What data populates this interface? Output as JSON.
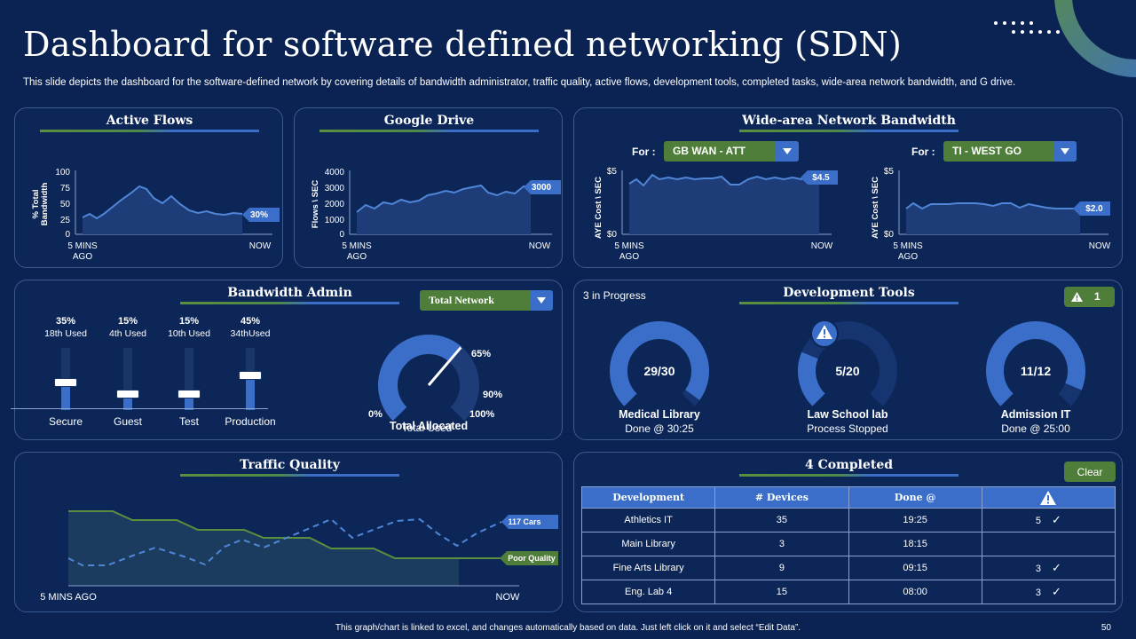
{
  "title": "Dashboard for software defined networking (SDN)",
  "subtitle": "This slide depicts the dashboard for the software-defined network by covering details of bandwidth administrator, traffic quality, active flows, development tools, completed tasks, wide-area network bandwidth, and G drive.",
  "active_flows": {
    "title": "Active Flows",
    "ylabel": "% Total\nBandwidth",
    "yticks": [
      "100",
      "75",
      "50",
      "25",
      "0"
    ],
    "x_start": "5 MINS\nAGO",
    "x_end": "NOW",
    "callout": "30%"
  },
  "google_drive": {
    "title": "Google Drive",
    "ylabel": "Flows \\ SEC",
    "yticks": [
      "4000",
      "3000",
      "2000",
      "1000",
      "0"
    ],
    "x_start": "5 MINS\nAGO",
    "x_end": "NOW",
    "callout": "3000"
  },
  "wan": {
    "title": "Wide-area Network Bandwidth",
    "left": {
      "for_label": "For :",
      "dropdown": "GB WAN - ATT",
      "ylabel": "AYE Cost \\ SEC",
      "ytop": "$5",
      "ybottom": "$0",
      "x_start": "5 MINS\nAGO",
      "x_end": "NOW",
      "callout": "$4.5"
    },
    "right": {
      "for_label": "For :",
      "dropdown": "TI - WEST GO",
      "ylabel": "AYE Cost \\ SEC",
      "ytop": "$5",
      "ybottom": "$0",
      "x_start": "5 MINS\nAGO",
      "x_end": "NOW",
      "callout": "$2.0"
    }
  },
  "bandwidth_admin": {
    "title": "Bandwidth Admin",
    "dropdown": "Total Network",
    "sliders": [
      {
        "pct": "35%",
        "used": "18th Used",
        "name": "Secure",
        "level": 0.35
      },
      {
        "pct": "15%",
        "used": "4th Used",
        "name": "Guest",
        "level": 0.15
      },
      {
        "pct": "15%",
        "used": "10th Used",
        "name": "Test",
        "level": 0.15
      },
      {
        "pct": "45%",
        "used": "34thUsed",
        "name": "Production",
        "level": 0.45
      }
    ],
    "gauge": {
      "label_0": "0%",
      "label_65": "65%",
      "label_90": "90%",
      "label_100": "100%",
      "title": "Total Allocated",
      "subtitle": "Total Used"
    }
  },
  "dev_tools": {
    "title": "Development Tools",
    "status": "3 in Progress",
    "alert_count": "1",
    "items": [
      {
        "value": "29/30",
        "name": "Medical Library",
        "detail": "Done @ 30:25",
        "fraction": 0.9667
      },
      {
        "value": "5/20",
        "name": "Law School lab",
        "detail": "Process Stopped",
        "fraction": 0.25
      },
      {
        "value": "11/12",
        "name": "Admission  IT",
        "detail": "Done @ 25:00",
        "fraction": 0.9167
      }
    ]
  },
  "traffic": {
    "title": "Traffic Quality",
    "x_start": "5 MINS AGO",
    "x_end": "NOW",
    "callout_cars": "117 Cars",
    "callout_quality": "Poor Quality"
  },
  "completed": {
    "title": "4 Completed",
    "clear_label": "Clear",
    "columns": [
      "Development",
      "# Devices",
      "Done @",
      "warning-icon"
    ],
    "rows": [
      {
        "name": "Athletics IT",
        "devices": "35",
        "done": "19:25",
        "alerts": "5",
        "check": true
      },
      {
        "name": "Main Library",
        "devices": "3",
        "done": "18:15",
        "alerts": "",
        "check": false
      },
      {
        "name": "Fine Arts Library",
        "devices": "9",
        "done": "09:15",
        "alerts": "3",
        "check": true
      },
      {
        "name": "Eng. Lab 4",
        "devices": "15",
        "done": "08:00",
        "alerts": "3",
        "check": true
      }
    ]
  },
  "footer": "This graph/chart is linked to excel, and changes automatically based on data. Just left click on it and select “Edit Data”.",
  "page_number": "50",
  "colors": {
    "background": "#0b2353",
    "accent_blue": "#3a6ec8",
    "accent_green": "#4f7d3a"
  }
}
